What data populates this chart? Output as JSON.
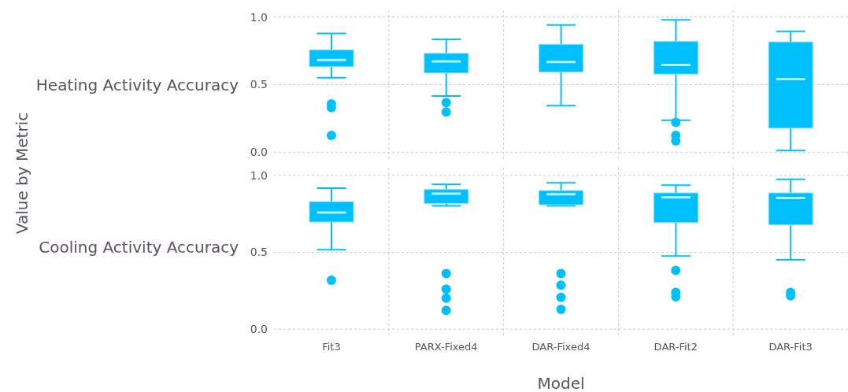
{
  "chart_data": [
    {
      "type": "box",
      "ylabel": "Heating Activity Accuracy",
      "annotations": [
        "Value by Metric"
      ],
      "color": "#00bfff",
      "ylim": [
        -0.05,
        1.05
      ],
      "yticks": [
        {
          "value": 0,
          "label": "0.0"
        },
        {
          "value": 0.5,
          "label": "0.5"
        },
        {
          "value": 1,
          "label": "1.0"
        }
      ],
      "grid": true,
      "tick_labels": "y",
      "boxes": [
        {
          "low": 0.551,
          "q1": 0.633,
          "median": 0.682,
          "q3": 0.757,
          "high": 0.878,
          "outliers": [
            0.357,
            0.33,
            0.125
          ]
        },
        {
          "low": 0.416,
          "q1": 0.586,
          "median": 0.672,
          "q3": 0.731,
          "high": 0.835,
          "outliers": [
            0.367,
            0.298
          ]
        },
        {
          "low": 0.345,
          "q1": 0.594,
          "median": 0.667,
          "q3": 0.798,
          "high": 0.941
        },
        {
          "low": 0.237,
          "q1": 0.578,
          "median": 0.645,
          "q3": 0.819,
          "high": 0.978,
          "outliers": [
            0.22,
            0.124,
            0.084
          ]
        },
        {
          "low": 0.012,
          "q1": 0.178,
          "median": 0.541,
          "q3": 0.816,
          "high": 0.894
        }
      ]
    },
    {
      "type": "box",
      "ylabel": "Cooling Activity Accuracy",
      "xlabel": "Model",
      "categories": [
        "Fit3",
        "PARX-Fixed4",
        "DAR-Fixed4",
        "DAR-Fit2",
        "DAR-Fit3"
      ],
      "color": "#00bfff",
      "ylim": [
        -0.05,
        1.05
      ],
      "yticks": [
        {
          "value": 0,
          "label": "0.0"
        },
        {
          "value": 0.5,
          "label": "0.5"
        },
        {
          "value": 1,
          "label": "1.0"
        }
      ],
      "grid": true,
      "boxes": [
        {
          "low": 0.516,
          "q1": 0.697,
          "median": 0.758,
          "q3": 0.829,
          "high": 0.917,
          "outliers": [
            0.318
          ]
        },
        {
          "low": 0.802,
          "q1": 0.818,
          "median": 0.881,
          "q3": 0.908,
          "high": 0.941,
          "outliers": [
            0.362,
            0.261,
            0.202,
            0.123
          ]
        },
        {
          "low": 0.802,
          "q1": 0.809,
          "median": 0.877,
          "q3": 0.901,
          "high": 0.952,
          "outliers": [
            0.362,
            0.286,
            0.207,
            0.129
          ]
        },
        {
          "low": 0.476,
          "q1": 0.694,
          "median": 0.857,
          "q3": 0.886,
          "high": 0.936,
          "outliers": [
            0.382,
            0.239,
            0.211
          ]
        },
        {
          "low": 0.451,
          "q1": 0.679,
          "median": 0.853,
          "q3": 0.886,
          "high": 0.974,
          "outliers": [
            0.239,
            0.217
          ]
        }
      ]
    }
  ]
}
